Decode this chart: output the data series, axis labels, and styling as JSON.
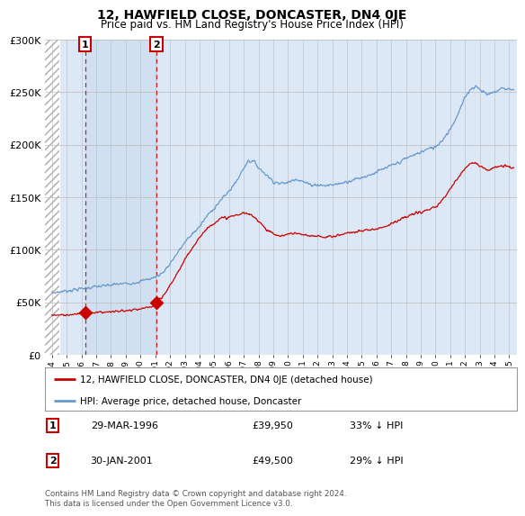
{
  "title": "12, HAWFIELD CLOSE, DONCASTER, DN4 0JE",
  "subtitle": "Price paid vs. HM Land Registry's House Price Index (HPI)",
  "legend_line1": "12, HAWFIELD CLOSE, DONCASTER, DN4 0JE (detached house)",
  "legend_line2": "HPI: Average price, detached house, Doncaster",
  "table_rows": [
    {
      "num": "1",
      "date": "29-MAR-1996",
      "price": "£39,950",
      "pct": "33% ↓ HPI"
    },
    {
      "num": "2",
      "date": "30-JAN-2001",
      "price": "£49,500",
      "pct": "29% ↓ HPI"
    }
  ],
  "footnote": "Contains HM Land Registry data © Crown copyright and database right 2024.\nThis data is licensed under the Open Government Licence v3.0.",
  "sale1_year": 1996.24,
  "sale1_price": 39950,
  "sale2_year": 2001.08,
  "sale2_price": 49500,
  "hatch_end_year": 1994.5,
  "highlight_start": 1996.24,
  "highlight_end": 2001.08,
  "ylim": [
    0,
    300000
  ],
  "xlim_start": 1993.5,
  "xlim_end": 2025.5,
  "red_color": "#cc0000",
  "blue_color": "#6699cc",
  "bg_color": "#dce8f5",
  "highlight_color": "#ccddf0",
  "grid_color": "#bbbbbb"
}
